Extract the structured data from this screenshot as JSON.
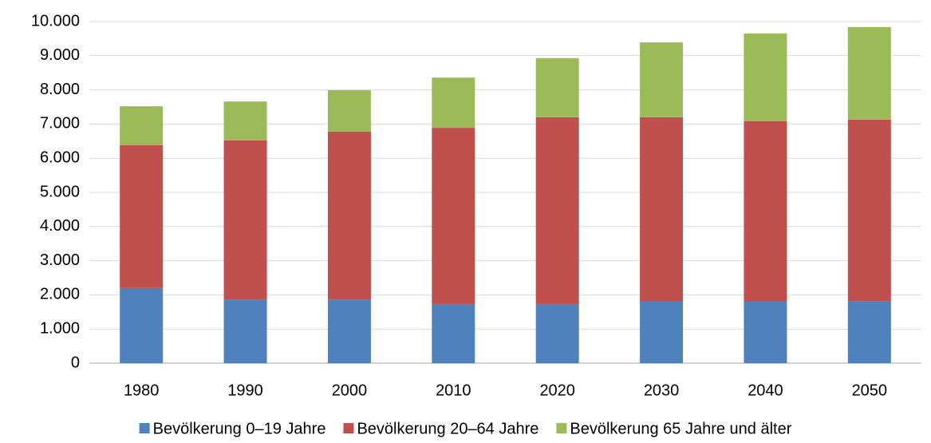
{
  "chart_data": {
    "type": "stacked_bar",
    "categories": [
      "1980",
      "1990",
      "2000",
      "2010",
      "2020",
      "2030",
      "2040",
      "2050"
    ],
    "series": [
      {
        "name": "Bevölkerung 0–19 Jahre",
        "color": "#4f81bd",
        "values": [
          2200,
          1850,
          1850,
          1730,
          1730,
          1800,
          1800,
          1820
        ]
      },
      {
        "name": "Bevölkerung 20–64 Jahre",
        "color": "#c0504d",
        "values": [
          4180,
          4670,
          4930,
          5160,
          5470,
          5400,
          5280,
          5310
        ]
      },
      {
        "name": "Bevölkerung 65 Jahre und älter",
        "color": "#9bbb59",
        "values": [
          1140,
          1140,
          1210,
          1470,
          1730,
          2190,
          2570,
          2710
        ]
      }
    ],
    "ylim": [
      0,
      10000
    ],
    "yticks": [
      0,
      {
        "value": 1000,
        "label": "1.000"
      },
      {
        "value": 2000,
        "label": "2.000"
      },
      {
        "value": 3000,
        "label": "3.000"
      },
      {
        "value": 4000,
        "label": "4.000"
      },
      {
        "value": 5000,
        "label": "5.000"
      },
      {
        "value": 6000,
        "label": "6.000"
      },
      {
        "value": 7000,
        "label": "7.000"
      },
      {
        "value": 8000,
        "label": "8.000"
      },
      {
        "value": 9000,
        "label": "9.000"
      },
      {
        "value": 10000,
        "label": "10.000"
      }
    ],
    "grid": true,
    "legend": "bottom"
  }
}
